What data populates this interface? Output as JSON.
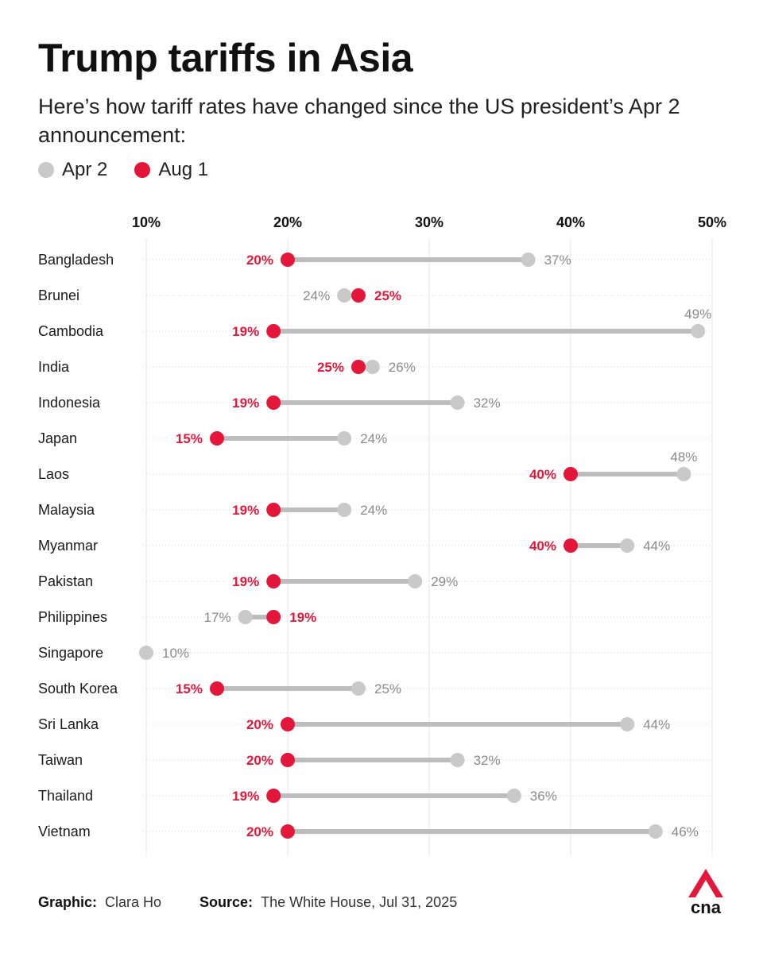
{
  "title": "Trump tariffs in Asia",
  "subtitle": "Here’s how tariff rates have changed since the US president’s Apr 2 announcement:",
  "legend": [
    {
      "label": "Apr 2",
      "color": "#c9c9c9"
    },
    {
      "label": "Aug 1",
      "color": "#e4163a"
    }
  ],
  "colors": {
    "apr": "#c9c9c9",
    "aug": "#e4163a",
    "line": "#bdbdbd",
    "grid": "#e6e6e6",
    "aprText": "#8a8a8a"
  },
  "footer": {
    "graphic_label": "Graphic:",
    "graphic_value": "Clara Ho",
    "source_label": "Source:",
    "source_value": "The White House, Jul 31, 2025"
  },
  "logo": {
    "text": "cna",
    "icon": "cna-logo-icon"
  },
  "chart_data": {
    "type": "dumbbell",
    "title": "Trump tariffs in Asia",
    "xlim": [
      10,
      50
    ],
    "xticks": [
      10,
      20,
      30,
      40,
      50
    ],
    "xtick_labels": [
      "10%",
      "20%",
      "30%",
      "40%",
      "50%"
    ],
    "grid": true,
    "legend_position": "top-left",
    "categories": [
      "Bangladesh",
      "Brunei",
      "Cambodia",
      "India",
      "Indonesia",
      "Japan",
      "Laos",
      "Malaysia",
      "Myanmar",
      "Pakistan",
      "Philippines",
      "Singapore",
      "South Korea",
      "Sri Lanka",
      "Taiwan",
      "Thailand",
      "Vietnam"
    ],
    "series": [
      {
        "name": "Apr 2",
        "values": [
          37,
          24,
          49,
          26,
          32,
          24,
          48,
          24,
          44,
          29,
          17,
          10,
          25,
          44,
          32,
          36,
          46
        ]
      },
      {
        "name": "Aug 1",
        "values": [
          20,
          25,
          19,
          25,
          19,
          15,
          40,
          19,
          40,
          19,
          19,
          null,
          15,
          20,
          20,
          19,
          20
        ]
      }
    ]
  }
}
